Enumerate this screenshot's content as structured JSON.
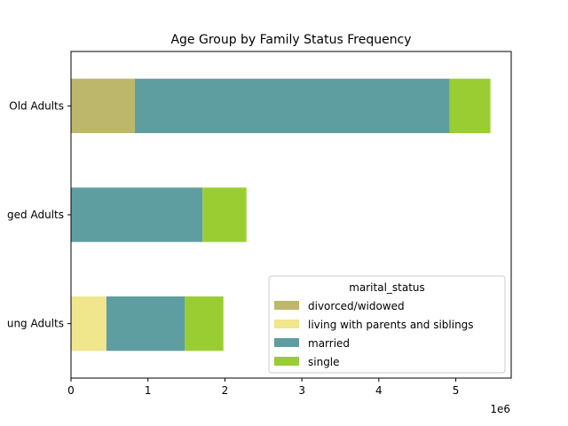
{
  "chart_data": {
    "type": "bar",
    "orientation": "horizontal",
    "stacked": true,
    "title": "Age Group by Family Status Frequency",
    "xlabel": "",
    "ylabel": "",
    "x_offset_label": "1e6",
    "xlim": [
      0,
      5.72
    ],
    "x_ticks": [
      0,
      1,
      2,
      3,
      4,
      5
    ],
    "x_tick_labels": [
      "0",
      "1",
      "2",
      "3",
      "4",
      "5"
    ],
    "categories": [
      "Old Adults",
      "Middle-aged Adults",
      "Young Adults"
    ],
    "visible_category_labels": [
      "Old Adults",
      "ged Adults",
      "ung Adults"
    ],
    "grid": false,
    "legend": {
      "title": "marital_status",
      "position": "lower-right"
    },
    "series": [
      {
        "name": "divorced/widowed",
        "color": "#bdb76b",
        "values": [
          0.83,
          0,
          0
        ]
      },
      {
        "name": "living with parents and siblings",
        "color": "#f0e68c",
        "values": [
          0,
          0,
          0.46
        ]
      },
      {
        "name": "married",
        "color": "#5f9ea0",
        "values": [
          4.09,
          1.71,
          1.02
        ]
      },
      {
        "name": "single",
        "color": "#9acd32",
        "values": [
          0.53,
          0.57,
          0.5
        ]
      }
    ]
  }
}
